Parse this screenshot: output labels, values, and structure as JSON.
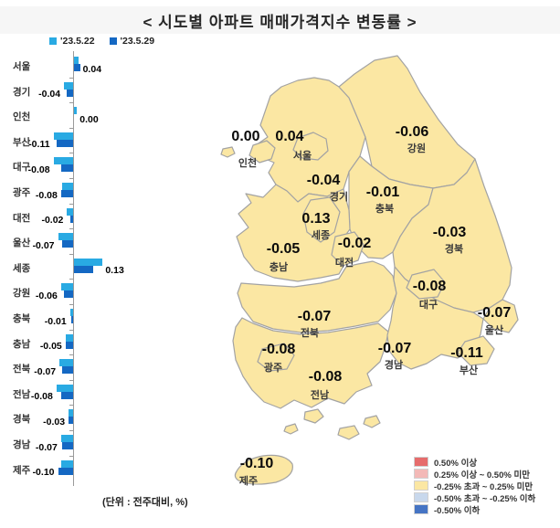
{
  "title": "<  시도별  아파트  매매가격지수  변동률  >",
  "unit_note": "(단위 : 전주대비, %)",
  "series_legend": [
    {
      "label": "'23.5.22",
      "color": "#29aae3"
    },
    {
      "label": "'23.5.29",
      "color": "#1468c3"
    }
  ],
  "chart_data": {
    "type": "bar",
    "orientation": "horizontal",
    "axis": "zero-centered",
    "xlim": [
      -0.25,
      0.25
    ],
    "grid": false,
    "legend_position": "top-left",
    "categories": [
      "서울",
      "경기",
      "인천",
      "부산",
      "대구",
      "광주",
      "대전",
      "울산",
      "세종",
      "강원",
      "충북",
      "충남",
      "전북",
      "전남",
      "경북",
      "경남",
      "제주"
    ],
    "series": [
      {
        "name": "'23.5.22",
        "color": "#29aae3",
        "values": [
          0.03,
          -0.06,
          0.02,
          -0.13,
          -0.13,
          -0.07,
          -0.04,
          -0.1,
          0.19,
          -0.08,
          -0.02,
          -0.05,
          -0.09,
          -0.11,
          -0.03,
          -0.08,
          -0.08
        ]
      },
      {
        "name": "'23.5.29",
        "color": "#1468c3",
        "values": [
          0.04,
          -0.04,
          0.0,
          -0.11,
          -0.08,
          -0.08,
          -0.02,
          -0.07,
          0.13,
          -0.06,
          -0.01,
          -0.05,
          -0.07,
          -0.08,
          -0.03,
          -0.07,
          -0.1
        ]
      }
    ],
    "value_labels": [
      "0.04",
      "-0.04",
      "0.00",
      "-0.11",
      "-0.08",
      "-0.08",
      "-0.02",
      "-0.07",
      "0.13",
      "-0.06",
      "-0.01",
      "-0.05",
      "-0.07",
      "-0.08",
      "-0.03",
      "-0.07",
      "-0.10"
    ]
  },
  "map": {
    "fill_color": "#fbe7a3",
    "border_color": "#a3a3a3",
    "regions": [
      {
        "id": "incheon",
        "name": "인천",
        "value": "0.00"
      },
      {
        "id": "seoul",
        "name": "서울",
        "value": "0.04"
      },
      {
        "id": "gyeonggi",
        "name": "경기",
        "value": "-0.04"
      },
      {
        "id": "gangwon",
        "name": "강원",
        "value": "-0.06"
      },
      {
        "id": "chungbuk",
        "name": "충북",
        "value": "-0.01"
      },
      {
        "id": "sejong",
        "name": "세종",
        "value": "0.13"
      },
      {
        "id": "daejeon",
        "name": "대전",
        "value": "-0.02"
      },
      {
        "id": "chungnam",
        "name": "충남",
        "value": "-0.05"
      },
      {
        "id": "gyeongbuk",
        "name": "경북",
        "value": "-0.03"
      },
      {
        "id": "daegu",
        "name": "대구",
        "value": "-0.08"
      },
      {
        "id": "ulsan",
        "name": "울산",
        "value": "-0.07"
      },
      {
        "id": "jeonbuk",
        "name": "전북",
        "value": "-0.07"
      },
      {
        "id": "gwangju",
        "name": "광주",
        "value": "-0.08"
      },
      {
        "id": "jeonnam",
        "name": "전남",
        "value": "-0.08"
      },
      {
        "id": "gyeongnam",
        "name": "경남",
        "value": "-0.07"
      },
      {
        "id": "busan",
        "name": "부산",
        "value": "-0.11"
      },
      {
        "id": "jeju",
        "name": "제주",
        "value": "-0.10"
      }
    ]
  },
  "map_legend": {
    "classes": [
      {
        "color": "#e66c6c",
        "label": "0.50% 이상"
      },
      {
        "color": "#f3b9b7",
        "label": "0.25% 이상 ~ 0.50% 미만"
      },
      {
        "color": "#fbe7a3",
        "label": "-0.25% 초과 ~ 0.25% 미만"
      },
      {
        "color": "#c8d8ec",
        "label": "-0.50% 초과 ~ -0.25% 이하"
      },
      {
        "color": "#4574c4",
        "label": "-0.50% 이하"
      }
    ]
  }
}
